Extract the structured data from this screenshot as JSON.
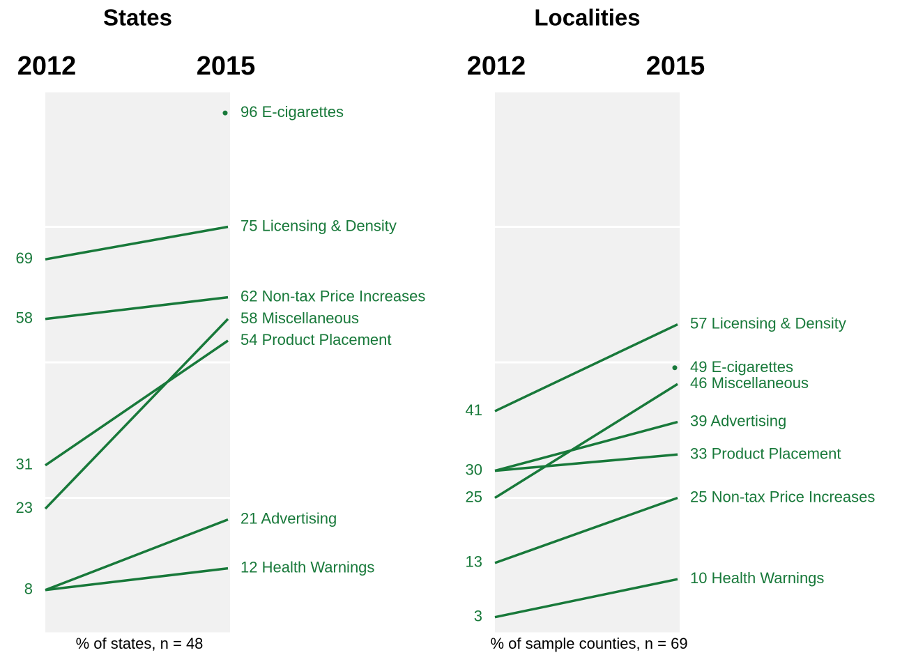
{
  "chart_data": [
    {
      "type": "slope",
      "title": "States",
      "categories": [
        "2012",
        "2015"
      ],
      "note": "% of states, n = 48",
      "ylim": [
        0,
        100
      ],
      "yticks": [
        0,
        25,
        50,
        75,
        100
      ],
      "grid": true,
      "color": "#18793a",
      "series": [
        {
          "name": "E-cigarettes",
          "values": [
            null,
            96
          ]
        },
        {
          "name": "Licensing & Density",
          "values": [
            69,
            75
          ]
        },
        {
          "name": "Non-tax Price Increases",
          "values": [
            58,
            62
          ]
        },
        {
          "name": "Miscellaneous",
          "values": [
            23,
            58
          ]
        },
        {
          "name": "Product Placement",
          "values": [
            31,
            54
          ]
        },
        {
          "name": "Advertising",
          "values": [
            8,
            21
          ]
        },
        {
          "name": "Health Warnings",
          "values": [
            8,
            12
          ]
        }
      ]
    },
    {
      "type": "slope",
      "title": "Localities",
      "categories": [
        "2012",
        "2015"
      ],
      "note": "% of sample counties, n = 69",
      "ylim": [
        0,
        100
      ],
      "yticks": [
        0,
        25,
        50,
        75,
        100
      ],
      "grid": true,
      "color": "#18793a",
      "series": [
        {
          "name": "Licensing & Density",
          "values": [
            41,
            57
          ]
        },
        {
          "name": "E-cigarettes",
          "values": [
            null,
            49
          ]
        },
        {
          "name": "Miscellaneous",
          "values": [
            25,
            46
          ]
        },
        {
          "name": "Advertising",
          "values": [
            30,
            39
          ]
        },
        {
          "name": "Product Placement",
          "values": [
            30,
            33
          ]
        },
        {
          "name": "Non-tax Price Increases",
          "values": [
            13,
            25
          ]
        },
        {
          "name": "Health Warnings",
          "values": [
            3,
            10
          ]
        }
      ]
    }
  ]
}
